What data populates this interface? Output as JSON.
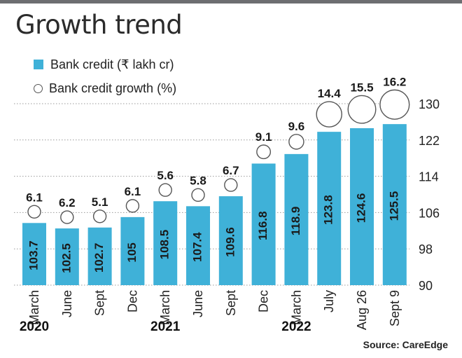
{
  "chart_data": {
    "type": "bar",
    "title": "Growth trend",
    "categories": [
      "March",
      "June",
      "Sept",
      "Dec",
      "March",
      "June",
      "Sept",
      "Dec",
      "March",
      "July",
      "Aug 26",
      "Sept 9"
    ],
    "year_labels": [
      {
        "label": "2020",
        "category_index": 0
      },
      {
        "label": "2021",
        "category_index": 4
      },
      {
        "label": "2022",
        "category_index": 8
      }
    ],
    "series": [
      {
        "name": "Bank credit (₹ lakh cr)",
        "type": "bar",
        "values": [
          103.7,
          102.5,
          102.7,
          105,
          108.5,
          107.4,
          109.6,
          116.8,
          118.9,
          123.8,
          124.6,
          125.5
        ]
      },
      {
        "name": "Bank credit growth (%)",
        "type": "bubble",
        "values": [
          6.1,
          6.2,
          5.1,
          6.1,
          5.6,
          5.8,
          6.7,
          9.1,
          9.6,
          14.4,
          15.5,
          16.2
        ]
      }
    ],
    "value_labels": [
      "103.7",
      "102.5",
      "102.7",
      "105",
      "108.5",
      "107.4",
      "109.6",
      "116.8",
      "118.9",
      "123.8",
      "124.6",
      "125.5"
    ],
    "growth_labels": [
      "6.1",
      "6.2",
      "5.1",
      "6.1",
      "5.6",
      "5.8",
      "6.7",
      "9.1",
      "9.6",
      "14.4",
      "15.5",
      "16.2"
    ],
    "y_axis": {
      "position": "right",
      "ticks": [
        "90",
        "98",
        "106",
        "114",
        "122",
        "130"
      ],
      "ylim": [
        90,
        130
      ]
    },
    "grid": true,
    "legend_placement": "top-left",
    "colors": {
      "bar": "#3fb1d8",
      "bubble_stroke": "#555555",
      "grid": "#9a9a9a",
      "text": "#222222"
    }
  },
  "source": "Source: CareEdge"
}
